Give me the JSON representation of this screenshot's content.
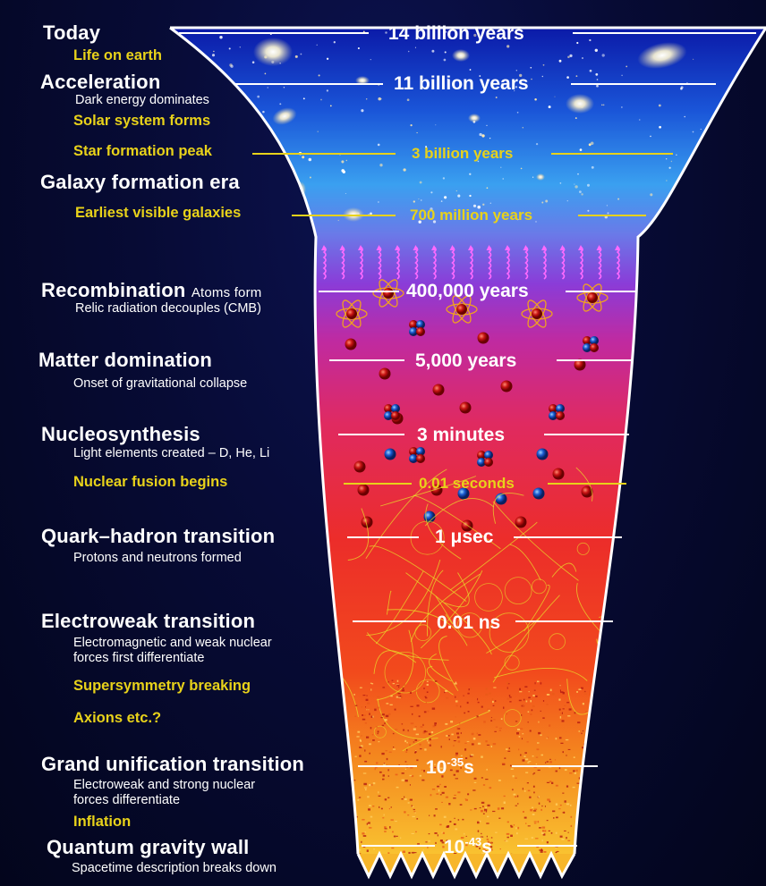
{
  "epochs": [
    {
      "id": "today",
      "title": "Today",
      "time": "14 billion years"
    },
    {
      "id": "life",
      "title": "Life on earth"
    },
    {
      "id": "acceleration",
      "title": "Acceleration",
      "subtitle": "Dark energy dominates",
      "time": "11 billion years"
    },
    {
      "id": "solar",
      "title": "Solar system forms"
    },
    {
      "id": "starpeak",
      "title": "Star formation peak",
      "time": "3 billion years"
    },
    {
      "id": "galaxyera",
      "title": "Galaxy formation era"
    },
    {
      "id": "earliest",
      "title": "Earliest visible galaxies",
      "time": "700 million years"
    },
    {
      "id": "recombination",
      "title": "Recombination",
      "title_inline": "Atoms form",
      "subtitle": "Relic radiation decouples (CMB)",
      "time": "400,000 years"
    },
    {
      "id": "matter",
      "title": "Matter domination",
      "subtitle": "Onset of gravitational collapse",
      "time": "5,000 years"
    },
    {
      "id": "nucleo",
      "title": "Nucleosynthesis",
      "subtitle": "Light elements created – D, He, Li",
      "time": "3 minutes"
    },
    {
      "id": "fusion",
      "title": "Nuclear fusion begins",
      "time": "0.01 seconds"
    },
    {
      "id": "quark",
      "title": "Quark–hadron transition",
      "subtitle": "Protons and neutrons formed",
      "time": "1 μsec"
    },
    {
      "id": "electroweak",
      "title": "Electroweak transition",
      "subtitle_lines": [
        "Electromagnetic and weak nuclear",
        "forces first differentiate"
      ],
      "time": "0.01 ns"
    },
    {
      "id": "susy",
      "title": "Supersymmetry breaking"
    },
    {
      "id": "axions",
      "title": "Axions etc.?"
    },
    {
      "id": "gut",
      "title": "Grand unification transition",
      "subtitle_lines": [
        "Electroweak and strong nuclear",
        "forces differentiate"
      ],
      "time_base": "10",
      "time_exp": "-35",
      "time_unit": "s"
    },
    {
      "id": "inflation",
      "title": "Inflation"
    },
    {
      "id": "qgwall",
      "title": "Quantum gravity wall",
      "subtitle": "Spacetime description breaks down",
      "time_base": "10",
      "time_exp": "-43",
      "time_unit": "s"
    }
  ]
}
